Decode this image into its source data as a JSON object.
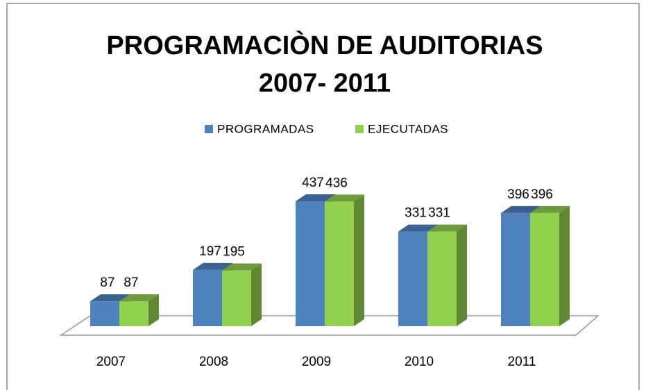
{
  "chart_data": {
    "type": "bar3d",
    "title": [
      "PROGRAMACIÒN DE AUDITORIAS",
      "2007- 2011"
    ],
    "categories": [
      "2007",
      "2008",
      "2009",
      "2010",
      "2011"
    ],
    "series": [
      {
        "name": "PROGRAMADAS",
        "color": "#4f81bd",
        "values": [
          87,
          197,
          437,
          331,
          396
        ]
      },
      {
        "name": "EJECUTADAS",
        "color": "#92d050",
        "values": [
          87,
          195,
          436,
          331,
          396
        ]
      }
    ],
    "legend": "top"
  }
}
